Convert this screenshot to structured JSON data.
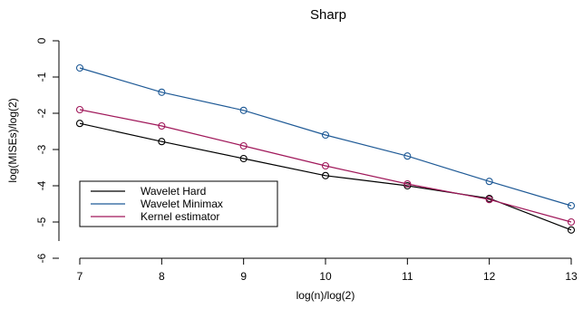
{
  "chart_data": {
    "type": "line",
    "title": "Sharp",
    "xlabel": "log(n)/log(2)",
    "ylabel": "log(MISEs)/log(2)",
    "x": [
      7,
      8,
      9,
      10,
      11,
      12,
      13
    ],
    "xlim": [
      7,
      13
    ],
    "ylim": [
      -6,
      0
    ],
    "xticks": [
      "7",
      "8",
      "9",
      "10",
      "11",
      "12",
      "13"
    ],
    "yticks": [
      "0",
      "-1",
      "-2",
      "-3",
      "-4",
      "-5",
      "-6"
    ],
    "legend_position": "bottom-left",
    "grid": false,
    "series": [
      {
        "name": "Wavelet Hard",
        "color": "#000000",
        "values": [
          -2.28,
          -2.78,
          -3.25,
          -3.72,
          -4.0,
          -4.35,
          -5.22
        ]
      },
      {
        "name": "Wavelet Minimax",
        "color": "#1f5a96",
        "values": [
          -0.75,
          -1.42,
          -1.92,
          -2.6,
          -3.18,
          -3.88,
          -4.55
        ]
      },
      {
        "name": "Kernel estimator",
        "color": "#a0185a",
        "values": [
          -1.9,
          -2.35,
          -2.9,
          -3.45,
          -3.95,
          -4.38,
          -5.0
        ]
      }
    ]
  }
}
